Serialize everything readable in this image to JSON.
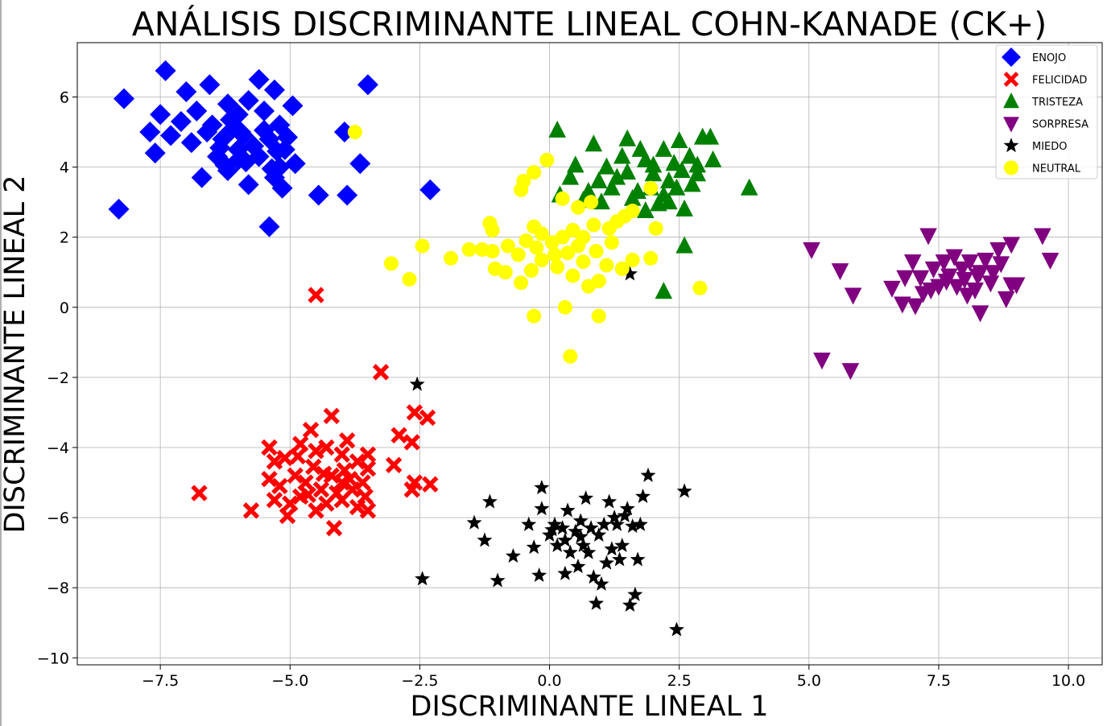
{
  "chart_data": {
    "type": "scatter",
    "title": "ANÁLISIS DISCRIMINANTE LINEAL COHN-KANADE (CK+)",
    "xlabel": "DISCRIMINANTE LINEAL 1",
    "ylabel": "DISCRIMINANTE LINEAL 2",
    "xlim": [
      -9.1,
      10.65
    ],
    "ylim": [
      -10.2,
      7.55
    ],
    "xticks": [
      -7.5,
      -5.0,
      -2.5,
      0.0,
      2.5,
      5.0,
      7.5,
      10.0
    ],
    "yticks": [
      -10,
      -8,
      -6,
      -4,
      -2,
      0,
      2,
      4,
      6
    ],
    "xtick_labels": [
      "−7.5",
      "−5.0",
      "−2.5",
      "0.0",
      "2.5",
      "5.0",
      "7.5",
      "10.0"
    ],
    "ytick_labels": [
      "−10",
      "−8",
      "−6",
      "−4",
      "−2",
      "0",
      "2",
      "4",
      "6"
    ],
    "grid": true,
    "legend_position": "top-right",
    "series": [
      {
        "name": "ENOJO",
        "marker": "diamond",
        "color": "#0000ff",
        "points": [
          [
            -8.2,
            5.95
          ],
          [
            -7.4,
            6.75
          ],
          [
            -7.0,
            6.15
          ],
          [
            -6.55,
            6.35
          ],
          [
            -5.6,
            6.5
          ],
          [
            -5.3,
            6.2
          ],
          [
            -3.5,
            6.35
          ],
          [
            -4.95,
            5.75
          ],
          [
            -7.5,
            5.5
          ],
          [
            -7.1,
            5.3
          ],
          [
            -6.8,
            5.6
          ],
          [
            -6.2,
            5.8
          ],
          [
            -6.0,
            5.5
          ],
          [
            -5.8,
            5.9
          ],
          [
            -5.5,
            5.6
          ],
          [
            -5.2,
            5.2
          ],
          [
            -7.7,
            5.0
          ],
          [
            -7.3,
            4.9
          ],
          [
            -6.9,
            4.7
          ],
          [
            -6.6,
            5.0
          ],
          [
            -6.3,
            4.8
          ],
          [
            -6.1,
            5.1
          ],
          [
            -5.9,
            4.9
          ],
          [
            -5.7,
            4.6
          ],
          [
            -5.4,
            4.8
          ],
          [
            -5.1,
            4.5
          ],
          [
            -7.6,
            4.4
          ],
          [
            -6.4,
            4.3
          ],
          [
            -6.0,
            4.2
          ],
          [
            -5.6,
            4.3
          ],
          [
            -5.2,
            4.0
          ],
          [
            -4.9,
            4.1
          ],
          [
            -6.7,
            3.7
          ],
          [
            -6.2,
            3.9
          ],
          [
            -5.8,
            3.5
          ],
          [
            -5.3,
            3.7
          ],
          [
            -5.15,
            3.4
          ],
          [
            -6.35,
            4.55
          ],
          [
            -5.85,
            4.15
          ],
          [
            -5.35,
            3.95
          ],
          [
            -6.15,
            5.35
          ],
          [
            -6.0,
            4.5
          ],
          [
            -5.95,
            5.0
          ],
          [
            -6.5,
            5.2
          ],
          [
            -6.25,
            4.05
          ],
          [
            -5.5,
            5.05
          ],
          [
            -5.25,
            4.45
          ],
          [
            -5.05,
            4.85
          ],
          [
            -4.45,
            3.2
          ],
          [
            -3.9,
            3.2
          ],
          [
            -3.65,
            4.1
          ],
          [
            -3.95,
            5.0
          ],
          [
            -2.3,
            3.35
          ],
          [
            -8.3,
            2.8
          ],
          [
            -5.4,
            2.3
          ]
        ]
      },
      {
        "name": "FELICIDAD",
        "marker": "x",
        "color": "#ff0000",
        "points": [
          [
            -4.5,
            0.35
          ],
          [
            -3.25,
            -1.85
          ],
          [
            -6.75,
            -5.3
          ],
          [
            -5.75,
            -5.8
          ],
          [
            -2.6,
            -3.0
          ],
          [
            -2.35,
            -3.15
          ],
          [
            -2.9,
            -3.65
          ],
          [
            -2.65,
            -3.85
          ],
          [
            -3.0,
            -4.5
          ],
          [
            -2.6,
            -5.0
          ],
          [
            -2.3,
            -5.05
          ],
          [
            -2.65,
            -5.2
          ],
          [
            -4.15,
            -6.3
          ],
          [
            -4.2,
            -3.1
          ],
          [
            -3.9,
            -3.8
          ],
          [
            -4.6,
            -3.5
          ],
          [
            -5.4,
            -4.0
          ],
          [
            -5.3,
            -4.4
          ],
          [
            -5.1,
            -4.3
          ],
          [
            -4.8,
            -3.9
          ],
          [
            -4.5,
            -4.1
          ],
          [
            -4.3,
            -4.0
          ],
          [
            -4.0,
            -4.2
          ],
          [
            -3.7,
            -4.4
          ],
          [
            -3.5,
            -4.2
          ],
          [
            -5.4,
            -4.9
          ],
          [
            -5.2,
            -5.1
          ],
          [
            -4.9,
            -4.8
          ],
          [
            -4.7,
            -5.0
          ],
          [
            -4.4,
            -5.2
          ],
          [
            -4.2,
            -4.8
          ],
          [
            -4.0,
            -5.0
          ],
          [
            -3.8,
            -5.2
          ],
          [
            -3.6,
            -5.0
          ],
          [
            -3.5,
            -4.6
          ],
          [
            -5.3,
            -5.5
          ],
          [
            -5.0,
            -5.6
          ],
          [
            -4.8,
            -5.4
          ],
          [
            -4.5,
            -5.8
          ],
          [
            -4.3,
            -5.6
          ],
          [
            -4.0,
            -5.5
          ],
          [
            -3.7,
            -5.7
          ],
          [
            -3.5,
            -5.8
          ],
          [
            -5.05,
            -5.95
          ],
          [
            -4.55,
            -4.55
          ],
          [
            -4.35,
            -4.75
          ],
          [
            -3.95,
            -4.65
          ],
          [
            -4.65,
            -5.35
          ],
          [
            -4.85,
            -4.25
          ],
          [
            -4.1,
            -5.3
          ],
          [
            -3.85,
            -4.9
          ],
          [
            -3.55,
            -5.4
          ]
        ]
      },
      {
        "name": "TRISTEZA",
        "marker": "triangle-up",
        "color": "#008000",
        "points": [
          [
            0.15,
            5.05
          ],
          [
            0.85,
            4.65
          ],
          [
            1.5,
            4.8
          ],
          [
            1.75,
            4.5
          ],
          [
            2.5,
            4.75
          ],
          [
            2.95,
            4.85
          ],
          [
            3.1,
            4.85
          ],
          [
            3.85,
            3.4
          ],
          [
            0.5,
            4.05
          ],
          [
            1.1,
            4.0
          ],
          [
            1.4,
            4.3
          ],
          [
            1.85,
            4.2
          ],
          [
            2.2,
            4.5
          ],
          [
            2.4,
            4.1
          ],
          [
            2.7,
            4.3
          ],
          [
            3.15,
            4.2
          ],
          [
            0.4,
            3.7
          ],
          [
            0.95,
            3.6
          ],
          [
            1.3,
            3.7
          ],
          [
            1.7,
            3.3
          ],
          [
            2.0,
            3.8
          ],
          [
            2.3,
            3.6
          ],
          [
            2.55,
            3.9
          ],
          [
            2.85,
            3.8
          ],
          [
            0.2,
            3.2
          ],
          [
            0.75,
            3.3
          ],
          [
            1.2,
            3.4
          ],
          [
            1.6,
            3.1
          ],
          [
            1.95,
            3.4
          ],
          [
            2.2,
            3.2
          ],
          [
            2.45,
            3.4
          ],
          [
            2.75,
            3.5
          ],
          [
            2.1,
            2.95
          ],
          [
            2.3,
            3.0
          ],
          [
            2.6,
            2.8
          ],
          [
            2.6,
            1.75
          ],
          [
            2.2,
            0.45
          ],
          [
            1.0,
            3.0
          ],
          [
            1.5,
            3.85
          ],
          [
            2.0,
            4.05
          ],
          [
            2.85,
            4.05
          ],
          [
            0.65,
            3.05
          ],
          [
            1.85,
            2.75
          ]
        ]
      },
      {
        "name": "SORPRESA",
        "marker": "triangle-down",
        "color": "#800080",
        "points": [
          [
            5.05,
            1.65
          ],
          [
            5.6,
            1.05
          ],
          [
            5.85,
            0.35
          ],
          [
            6.6,
            0.55
          ],
          [
            6.85,
            0.85
          ],
          [
            7.3,
            2.05
          ],
          [
            9.5,
            2.05
          ],
          [
            9.65,
            1.35
          ],
          [
            5.25,
            -1.5
          ],
          [
            5.8,
            -1.8
          ],
          [
            6.8,
            0.1
          ],
          [
            7.05,
            0.05
          ],
          [
            7.2,
            0.4
          ],
          [
            7.0,
            1.3
          ],
          [
            7.4,
            1.1
          ],
          [
            7.5,
            0.6
          ],
          [
            7.6,
            1.3
          ],
          [
            7.7,
            0.9
          ],
          [
            7.8,
            1.45
          ],
          [
            7.85,
            0.6
          ],
          [
            7.95,
            1.1
          ],
          [
            8.0,
            0.8
          ],
          [
            8.1,
            1.3
          ],
          [
            8.2,
            0.5
          ],
          [
            8.3,
            1.0
          ],
          [
            8.4,
            1.35
          ],
          [
            8.5,
            0.7
          ],
          [
            8.65,
            1.65
          ],
          [
            8.7,
            1.25
          ],
          [
            8.8,
            0.25
          ],
          [
            8.9,
            0.65
          ],
          [
            9.0,
            0.65
          ],
          [
            8.9,
            1.8
          ],
          [
            8.3,
            -0.15
          ],
          [
            7.65,
            0.75
          ],
          [
            8.05,
            0.35
          ],
          [
            8.55,
            1.0
          ],
          [
            7.35,
            0.5
          ],
          [
            7.15,
            0.85
          ],
          [
            8.25,
            0.9
          ]
        ]
      },
      {
        "name": "MIEDO",
        "marker": "star",
        "color": "#000000",
        "points": [
          [
            -2.55,
            -2.2
          ],
          [
            -2.45,
            -7.75
          ],
          [
            -1.45,
            -6.15
          ],
          [
            -1.25,
            -6.65
          ],
          [
            -1.15,
            -5.55
          ],
          [
            -1.0,
            -7.8
          ],
          [
            -0.7,
            -7.1
          ],
          [
            -0.4,
            -6.2
          ],
          [
            -0.3,
            -6.85
          ],
          [
            -0.2,
            -7.65
          ],
          [
            -0.15,
            -5.15
          ],
          [
            -0.15,
            -5.75
          ],
          [
            0.0,
            -6.5
          ],
          [
            0.1,
            -6.2
          ],
          [
            0.15,
            -6.8
          ],
          [
            0.25,
            -6.3
          ],
          [
            0.3,
            -6.65
          ],
          [
            0.35,
            -5.8
          ],
          [
            0.4,
            -7.0
          ],
          [
            0.5,
            -6.4
          ],
          [
            0.55,
            -7.4
          ],
          [
            0.6,
            -6.1
          ],
          [
            0.65,
            -6.8
          ],
          [
            0.7,
            -5.45
          ],
          [
            0.75,
            -7.0
          ],
          [
            0.8,
            -6.3
          ],
          [
            0.85,
            -7.7
          ],
          [
            0.9,
            -8.45
          ],
          [
            0.95,
            -6.5
          ],
          [
            1.0,
            -7.9
          ],
          [
            1.05,
            -6.2
          ],
          [
            1.1,
            -7.3
          ],
          [
            1.15,
            -5.55
          ],
          [
            1.2,
            -6.9
          ],
          [
            1.3,
            -6.2
          ],
          [
            1.35,
            -7.2
          ],
          [
            1.4,
            -6.8
          ],
          [
            1.45,
            -5.95
          ],
          [
            1.5,
            -5.75
          ],
          [
            1.55,
            -8.5
          ],
          [
            1.6,
            -6.25
          ],
          [
            1.65,
            -8.2
          ],
          [
            1.7,
            -7.2
          ],
          [
            1.75,
            -6.2
          ],
          [
            1.8,
            -5.4
          ],
          [
            1.9,
            -4.8
          ],
          [
            2.6,
            -5.25
          ],
          [
            2.45,
            -9.2
          ],
          [
            1.55,
            0.95
          ],
          [
            0.3,
            -7.6
          ],
          [
            0.6,
            -6.55
          ],
          [
            1.25,
            -6.0
          ],
          [
            0.05,
            -6.35
          ]
        ]
      },
      {
        "name": "NEUTRAL",
        "marker": "circle",
        "color": "#ffff00",
        "points": [
          [
            -3.75,
            5.0
          ],
          [
            -0.05,
            4.2
          ],
          [
            -0.3,
            3.85
          ],
          [
            -0.5,
            3.6
          ],
          [
            -0.55,
            3.35
          ],
          [
            0.25,
            3.1
          ],
          [
            0.55,
            2.85
          ],
          [
            0.8,
            3.0
          ],
          [
            1.95,
            3.4
          ],
          [
            2.05,
            2.25
          ],
          [
            1.6,
            2.75
          ],
          [
            1.45,
            2.6
          ],
          [
            1.3,
            2.45
          ],
          [
            1.15,
            2.25
          ],
          [
            0.85,
            2.35
          ],
          [
            0.65,
            2.0
          ],
          [
            0.45,
            2.2
          ],
          [
            0.25,
            2.0
          ],
          [
            0.05,
            1.85
          ],
          [
            -0.15,
            2.1
          ],
          [
            -0.3,
            2.3
          ],
          [
            -0.45,
            1.9
          ],
          [
            -0.6,
            1.5
          ],
          [
            -0.8,
            1.75
          ],
          [
            -1.1,
            2.2
          ],
          [
            -1.1,
            1.6
          ],
          [
            -1.3,
            1.65
          ],
          [
            -1.55,
            1.65
          ],
          [
            -1.9,
            1.4
          ],
          [
            -2.45,
            1.75
          ],
          [
            -2.7,
            0.8
          ],
          [
            -3.05,
            1.25
          ],
          [
            -1.05,
            1.1
          ],
          [
            -0.85,
            1.0
          ],
          [
            -0.55,
            0.7
          ],
          [
            -0.35,
            1.05
          ],
          [
            -0.15,
            1.35
          ],
          [
            0.15,
            1.15
          ],
          [
            0.35,
            1.55
          ],
          [
            0.45,
            0.9
          ],
          [
            0.65,
            1.3
          ],
          [
            0.75,
            0.6
          ],
          [
            0.95,
            0.75
          ],
          [
            1.1,
            1.2
          ],
          [
            1.4,
            1.1
          ],
          [
            1.6,
            1.35
          ],
          [
            1.95,
            1.4
          ],
          [
            2.9,
            0.55
          ],
          [
            0.3,
            0.0
          ],
          [
            -0.3,
            -0.25
          ],
          [
            0.95,
            -0.25
          ],
          [
            0.4,
            -1.4
          ],
          [
            0.9,
            1.6
          ],
          [
            0.55,
            1.75
          ],
          [
            0.1,
            1.5
          ],
          [
            -0.25,
            1.7
          ],
          [
            1.2,
            1.85
          ],
          [
            -1.15,
            2.4
          ]
        ]
      }
    ]
  }
}
